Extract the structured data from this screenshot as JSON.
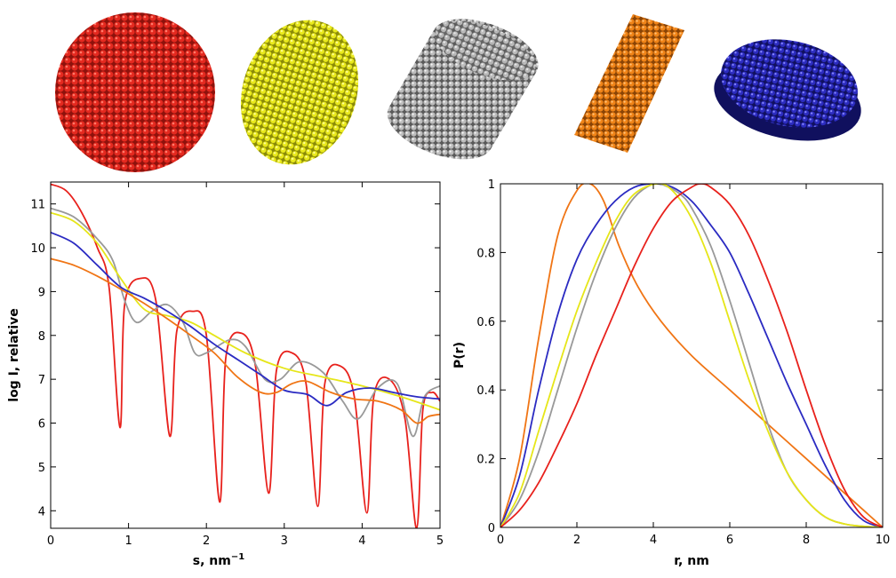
{
  "shapes": [
    {
      "name": "sphere",
      "color": "#d8241b"
    },
    {
      "name": "ellipsoid",
      "color": "#e6e61a"
    },
    {
      "name": "cylinder",
      "color": "#b4b4b4"
    },
    {
      "name": "rod",
      "color": "#ef7d12"
    },
    {
      "name": "disk",
      "color": "#2a2ab4"
    }
  ],
  "chart_data": [
    {
      "type": "line",
      "title": "",
      "xlabel": "s, nm",
      "xlabel_sup": "−1",
      "ylabel": "log I, relative",
      "xlim": [
        0,
        5
      ],
      "ylim": [
        3.6,
        11.5
      ],
      "xticks": [
        "0",
        "1",
        "2",
        "3",
        "4",
        "5"
      ],
      "yticks": [
        "4",
        "5",
        "6",
        "7",
        "8",
        "9",
        "10",
        "11"
      ],
      "grid": false,
      "series": [
        {
          "color": "#e8211c",
          "kind": "sphere",
          "x": [
            0,
            0.2,
            0.4,
            0.6,
            0.75,
            0.89,
            0.95,
            1.15,
            1.35,
            1.53,
            1.62,
            1.82,
            2.0,
            2.17,
            2.25,
            2.45,
            2.63,
            2.8,
            2.9,
            3.1,
            3.28,
            3.43,
            3.52,
            3.72,
            3.9,
            4.06,
            4.15,
            4.35,
            4.55,
            4.7,
            4.78,
            4.9,
            5.0
          ],
          "y": [
            11.45,
            11.3,
            10.8,
            10.0,
            9.1,
            5.9,
            8.7,
            9.3,
            8.8,
            5.7,
            8.1,
            8.55,
            8.0,
            4.2,
            7.5,
            8.05,
            7.3,
            4.4,
            7.2,
            7.6,
            6.9,
            4.1,
            6.9,
            7.3,
            6.6,
            3.95,
            6.6,
            7.0,
            6.1,
            3.6,
            6.3,
            6.7,
            6.5
          ]
        },
        {
          "color": "#999999",
          "kind": "cylinder",
          "x": [
            0,
            0.3,
            0.6,
            0.8,
            0.95,
            1.1,
            1.3,
            1.5,
            1.7,
            1.85,
            2.0,
            2.3,
            2.5,
            2.75,
            2.95,
            3.2,
            3.5,
            3.75,
            3.95,
            4.2,
            4.45,
            4.65,
            4.8,
            5.0
          ],
          "y": [
            10.9,
            10.7,
            10.2,
            9.7,
            8.8,
            8.3,
            8.55,
            8.7,
            8.3,
            7.6,
            7.6,
            7.9,
            7.75,
            7.0,
            7.0,
            7.4,
            7.15,
            6.5,
            6.1,
            6.8,
            6.9,
            5.7,
            6.6,
            6.85
          ]
        },
        {
          "color": "#e6e619",
          "kind": "ellipsoid",
          "x": [
            0,
            0.3,
            0.6,
            0.9,
            1.2,
            1.5,
            1.8,
            2.1,
            2.5,
            3.0,
            3.5,
            4.0,
            4.5,
            5.0
          ],
          "y": [
            10.8,
            10.6,
            10.1,
            9.3,
            8.6,
            8.45,
            8.3,
            8.0,
            7.6,
            7.25,
            7.05,
            6.85,
            6.6,
            6.3
          ]
        },
        {
          "color": "#2b2bc2",
          "kind": "disk",
          "x": [
            0,
            0.3,
            0.6,
            0.9,
            1.2,
            1.5,
            1.8,
            2.1,
            2.4,
            2.7,
            3.0,
            3.3,
            3.55,
            3.8,
            4.1,
            4.4,
            4.7,
            5.0
          ],
          "y": [
            10.35,
            10.1,
            9.6,
            9.1,
            8.85,
            8.55,
            8.2,
            7.8,
            7.45,
            7.1,
            6.75,
            6.65,
            6.4,
            6.7,
            6.8,
            6.7,
            6.6,
            6.55
          ]
        },
        {
          "color": "#f07515",
          "kind": "rod",
          "x": [
            0,
            0.3,
            0.6,
            1.0,
            1.4,
            1.8,
            2.1,
            2.4,
            2.7,
            2.9,
            3.1,
            3.3,
            3.6,
            3.9,
            4.2,
            4.5,
            4.7,
            4.85,
            5.0
          ],
          "y": [
            9.75,
            9.6,
            9.35,
            8.95,
            8.5,
            8.0,
            7.6,
            7.05,
            6.7,
            6.7,
            6.9,
            6.95,
            6.7,
            6.55,
            6.5,
            6.3,
            6.0,
            6.15,
            6.2
          ]
        }
      ]
    },
    {
      "type": "line",
      "title": "",
      "xlabel": "r, nm",
      "ylabel": "P(r)",
      "xlim": [
        0,
        10
      ],
      "ylim": [
        0,
        1
      ],
      "xticks": [
        "0",
        "2",
        "4",
        "6",
        "8",
        "10"
      ],
      "yticks": [
        "0",
        "0.2",
        "0.4",
        "0.6",
        "0.8",
        "1"
      ],
      "grid": false,
      "series": [
        {
          "color": "#f07515",
          "kind": "rod",
          "x": [
            0,
            0.5,
            1.0,
            1.5,
            2.0,
            2.35,
            2.7,
            3.1,
            3.6,
            4.2,
            5.0,
            6.0,
            7.0,
            8.0,
            9.0,
            9.6,
            10.0
          ],
          "y": [
            0,
            0.2,
            0.55,
            0.85,
            0.98,
            1.0,
            0.95,
            0.82,
            0.7,
            0.6,
            0.5,
            0.4,
            0.3,
            0.2,
            0.1,
            0.04,
            0
          ]
        },
        {
          "color": "#2b2bc2",
          "kind": "disk",
          "x": [
            0,
            0.5,
            1.0,
            1.5,
            2.0,
            2.5,
            3.0,
            3.5,
            4.0,
            4.5,
            5.0,
            5.5,
            6.0,
            6.5,
            7.0,
            7.5,
            8.0,
            8.5,
            9.0,
            9.5,
            10.0
          ],
          "y": [
            0,
            0.15,
            0.4,
            0.62,
            0.78,
            0.88,
            0.95,
            0.99,
            1.0,
            0.99,
            0.95,
            0.88,
            0.8,
            0.68,
            0.55,
            0.42,
            0.3,
            0.18,
            0.08,
            0.02,
            0
          ]
        },
        {
          "color": "#999999",
          "kind": "cylinder",
          "x": [
            0,
            0.5,
            1.0,
            1.5,
            2.0,
            2.5,
            3.0,
            3.5,
            4.0,
            4.3,
            4.7,
            5.0,
            5.5,
            6.0,
            6.5,
            7.0,
            7.5,
            8.0,
            8.5,
            9.0,
            9.5,
            10.0
          ],
          "y": [
            0,
            0.08,
            0.22,
            0.4,
            0.58,
            0.74,
            0.87,
            0.96,
            1.0,
            0.995,
            0.97,
            0.93,
            0.82,
            0.66,
            0.48,
            0.3,
            0.16,
            0.08,
            0.03,
            0.01,
            0.003,
            0
          ]
        },
        {
          "color": "#e6e619",
          "kind": "ellipsoid",
          "x": [
            0,
            0.5,
            1.0,
            1.5,
            2.0,
            2.5,
            3.0,
            3.5,
            4.1,
            4.5,
            5.0,
            5.5,
            6.0,
            6.5,
            7.0,
            7.5,
            8.0,
            8.5,
            9.0,
            9.5,
            10.0
          ],
          "y": [
            0,
            0.1,
            0.28,
            0.46,
            0.63,
            0.77,
            0.89,
            0.97,
            1.0,
            0.98,
            0.9,
            0.77,
            0.6,
            0.43,
            0.28,
            0.16,
            0.08,
            0.03,
            0.01,
            0.003,
            0
          ]
        },
        {
          "color": "#e8211c",
          "kind": "sphere",
          "x": [
            0,
            0.5,
            1.0,
            1.5,
            2.0,
            2.5,
            3.0,
            3.5,
            4.0,
            4.5,
            5.0,
            5.25,
            5.5,
            6.0,
            6.5,
            7.0,
            7.5,
            8.0,
            8.5,
            9.0,
            9.5,
            10.0
          ],
          "y": [
            0,
            0.05,
            0.13,
            0.24,
            0.36,
            0.5,
            0.63,
            0.76,
            0.87,
            0.95,
            0.99,
            1.0,
            0.99,
            0.94,
            0.85,
            0.72,
            0.57,
            0.4,
            0.24,
            0.11,
            0.03,
            0
          ]
        }
      ]
    }
  ]
}
